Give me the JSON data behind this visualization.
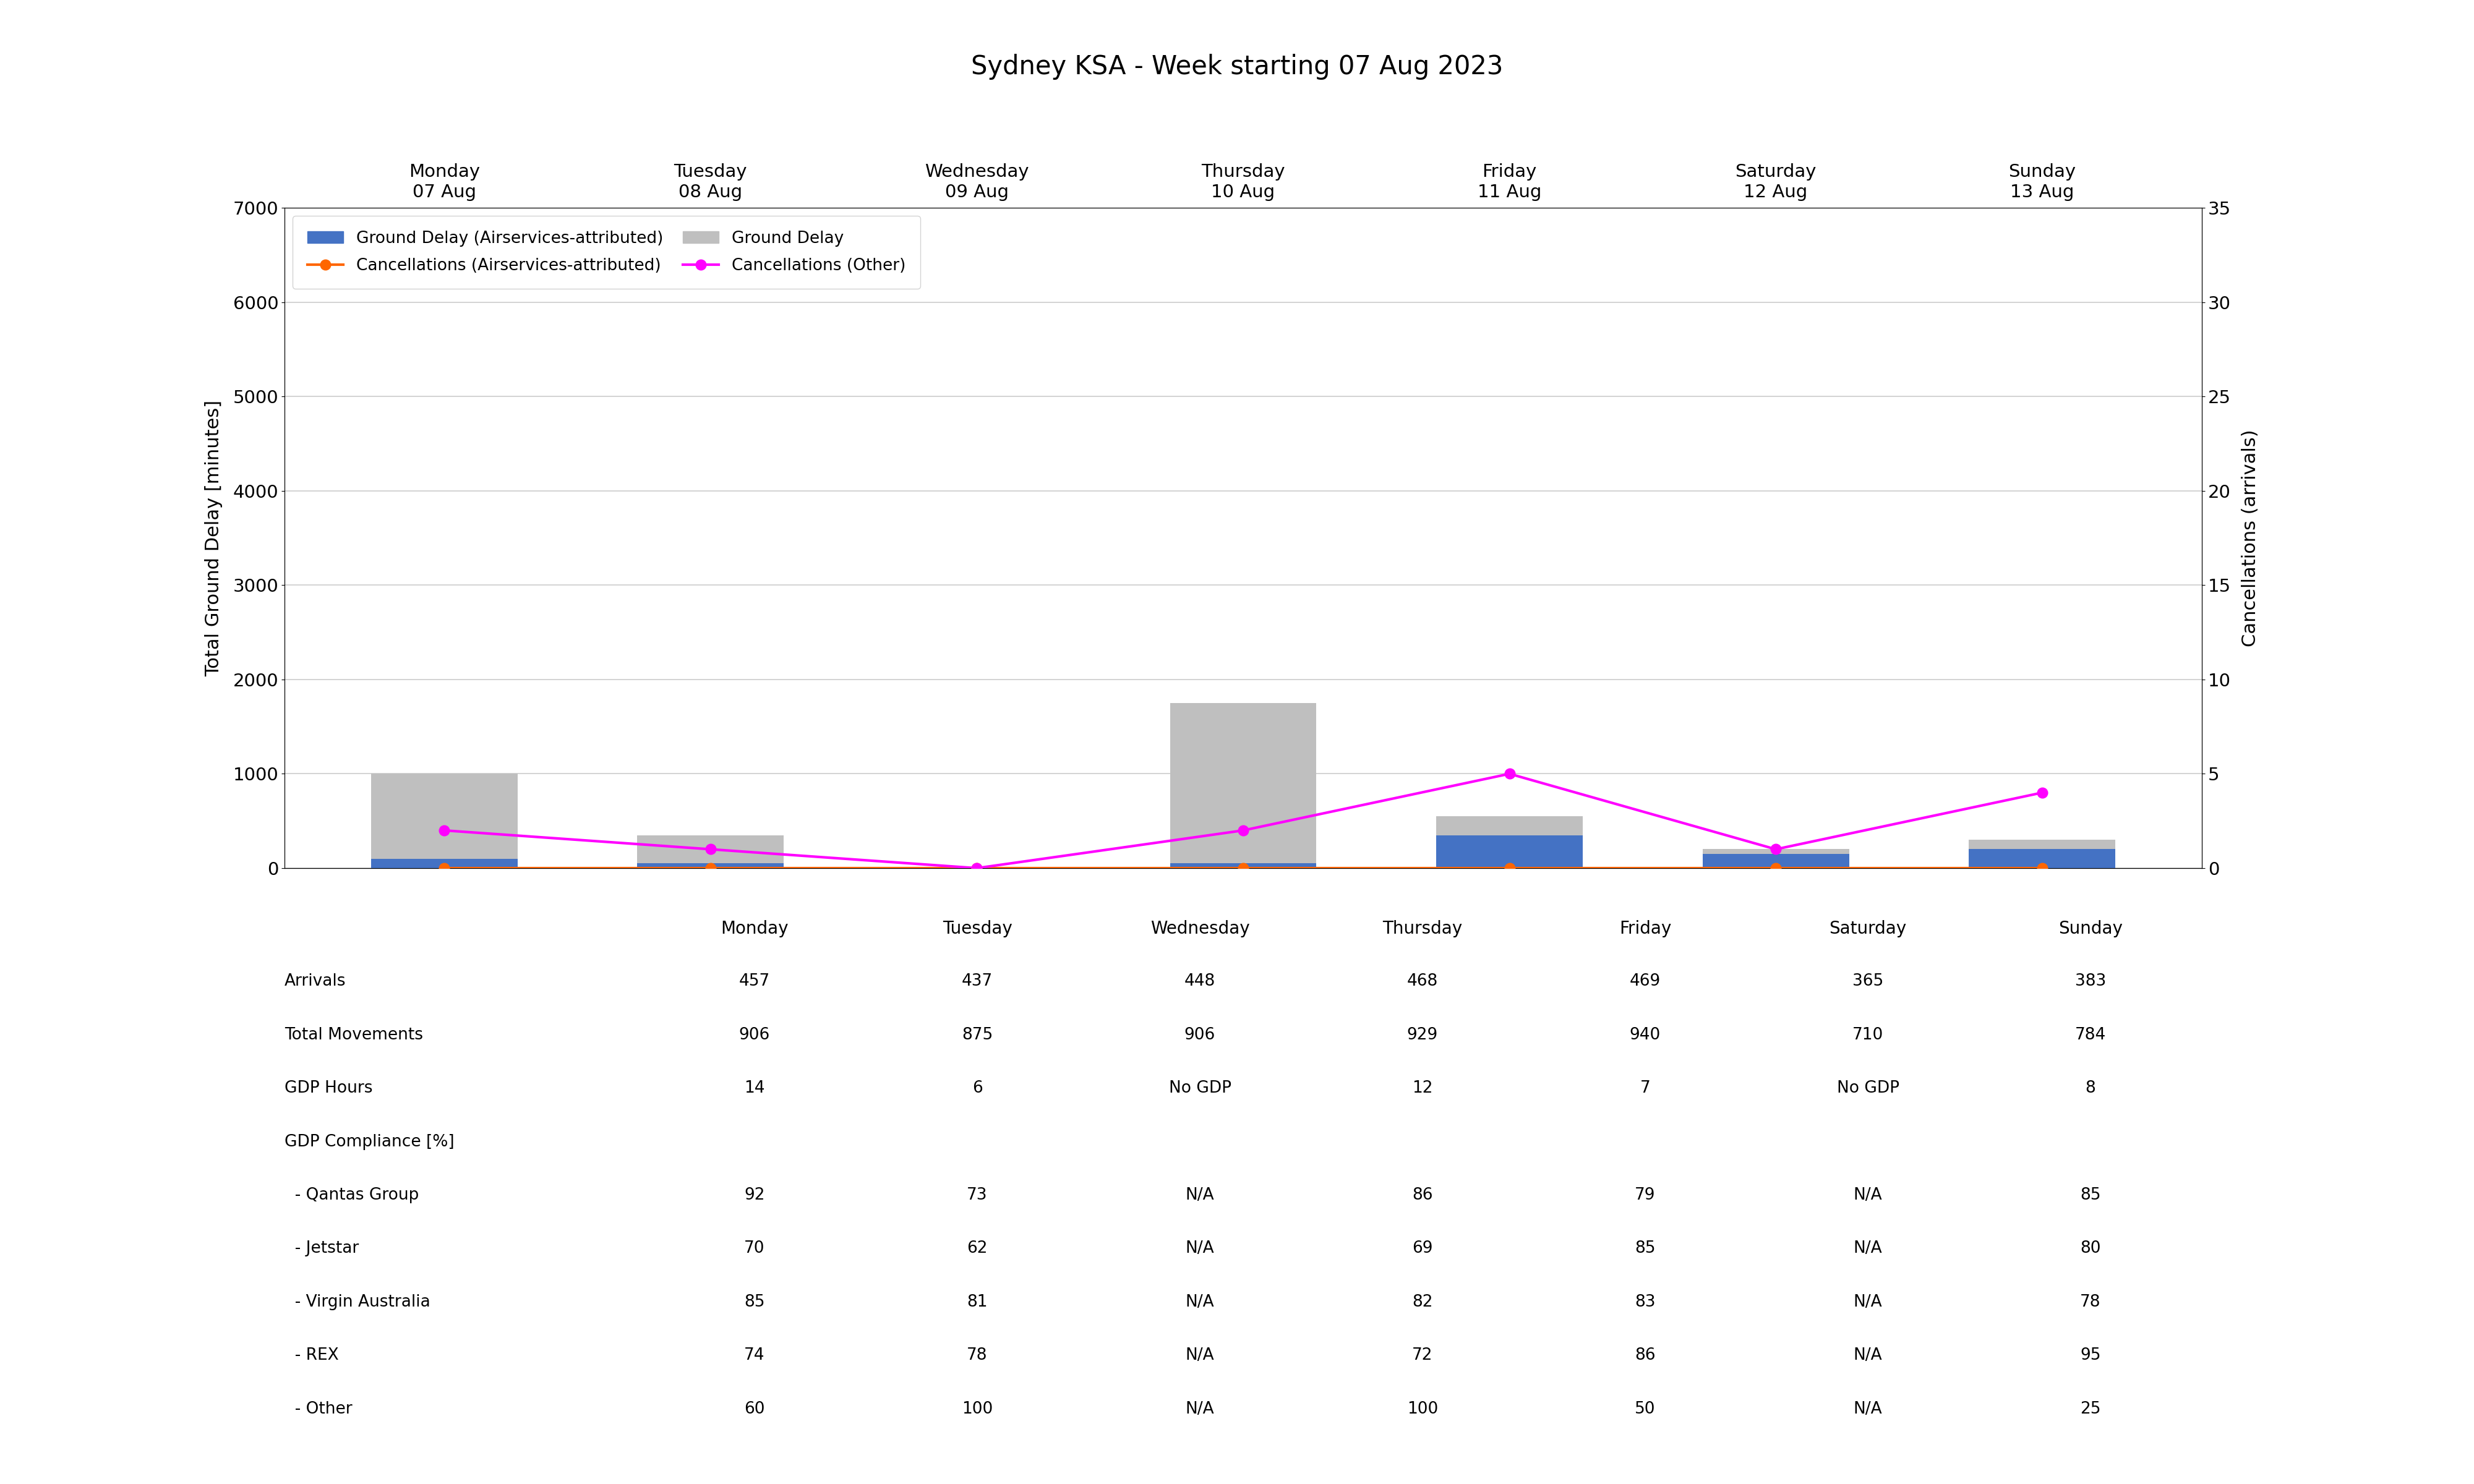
{
  "title": "Sydney KSA - Week starting 07 Aug 2023",
  "days": [
    "Monday\n07 Aug",
    "Tuesday\n08 Aug",
    "Wednesday\n09 Aug",
    "Thursday\n10 Aug",
    "Friday\n11 Aug",
    "Saturday\n12 Aug",
    "Sunday\n13 Aug"
  ],
  "days_short": [
    "Monday",
    "Tuesday",
    "Wednesday",
    "Thursday",
    "Friday",
    "Saturday",
    "Sunday"
  ],
  "x_positions": [
    1,
    2,
    3,
    4,
    5,
    6,
    7
  ],
  "ground_delay_total": [
    1000,
    350,
    0,
    1750,
    550,
    200,
    300
  ],
  "ground_delay_attributed": [
    100,
    50,
    0,
    50,
    350,
    150,
    200
  ],
  "cancellations_attributed": [
    0,
    0,
    0,
    0,
    0,
    0,
    0
  ],
  "cancellations_other": [
    2,
    1,
    0,
    2,
    5,
    1,
    4
  ],
  "bar_color_blue": "#4472C4",
  "bar_color_gray": "#BFBFBF",
  "line_color_orange": "#FF6600",
  "line_color_magenta": "#FF00FF",
  "ylim_left": [
    0,
    7000
  ],
  "ylim_right": [
    0,
    35
  ],
  "yticks_left": [
    0,
    1000,
    2000,
    3000,
    4000,
    5000,
    6000,
    7000
  ],
  "yticks_right": [
    0,
    5,
    10,
    15,
    20,
    25,
    30,
    35
  ],
  "ylabel_left": "Total Ground Delay [minutes]",
  "ylabel_right": "Cancellations (arrivals)",
  "table_rows": [
    {
      "label": "Arrivals",
      "values": [
        "457",
        "437",
        "448",
        "468",
        "469",
        "365",
        "383"
      ]
    },
    {
      "label": "Total Movements",
      "values": [
        "906",
        "875",
        "906",
        "929",
        "940",
        "710",
        "784"
      ]
    },
    {
      "label": "GDP Hours",
      "values": [
        "14",
        "6",
        "No GDP",
        "12",
        "7",
        "No GDP",
        "8"
      ]
    },
    {
      "label": "GDP Compliance [%]",
      "values": [
        "",
        "",
        "",
        "",
        "",
        "",
        ""
      ]
    },
    {
      "label": "  - Qantas Group",
      "values": [
        "92",
        "73",
        "N/A",
        "86",
        "79",
        "N/A",
        "85"
      ]
    },
    {
      "label": "  - Jetstar",
      "values": [
        "70",
        "62",
        "N/A",
        "69",
        "85",
        "N/A",
        "80"
      ]
    },
    {
      "label": "  - Virgin Australia",
      "values": [
        "85",
        "81",
        "N/A",
        "82",
        "83",
        "N/A",
        "78"
      ]
    },
    {
      "label": "  - REX",
      "values": [
        "74",
        "78",
        "N/A",
        "72",
        "86",
        "N/A",
        "95"
      ]
    },
    {
      "label": "  - Other",
      "values": [
        "60",
        "100",
        "N/A",
        "100",
        "50",
        "N/A",
        "25"
      ]
    }
  ],
  "background_color": "#FFFFFF",
  "grid_color": "#CCCCCC"
}
